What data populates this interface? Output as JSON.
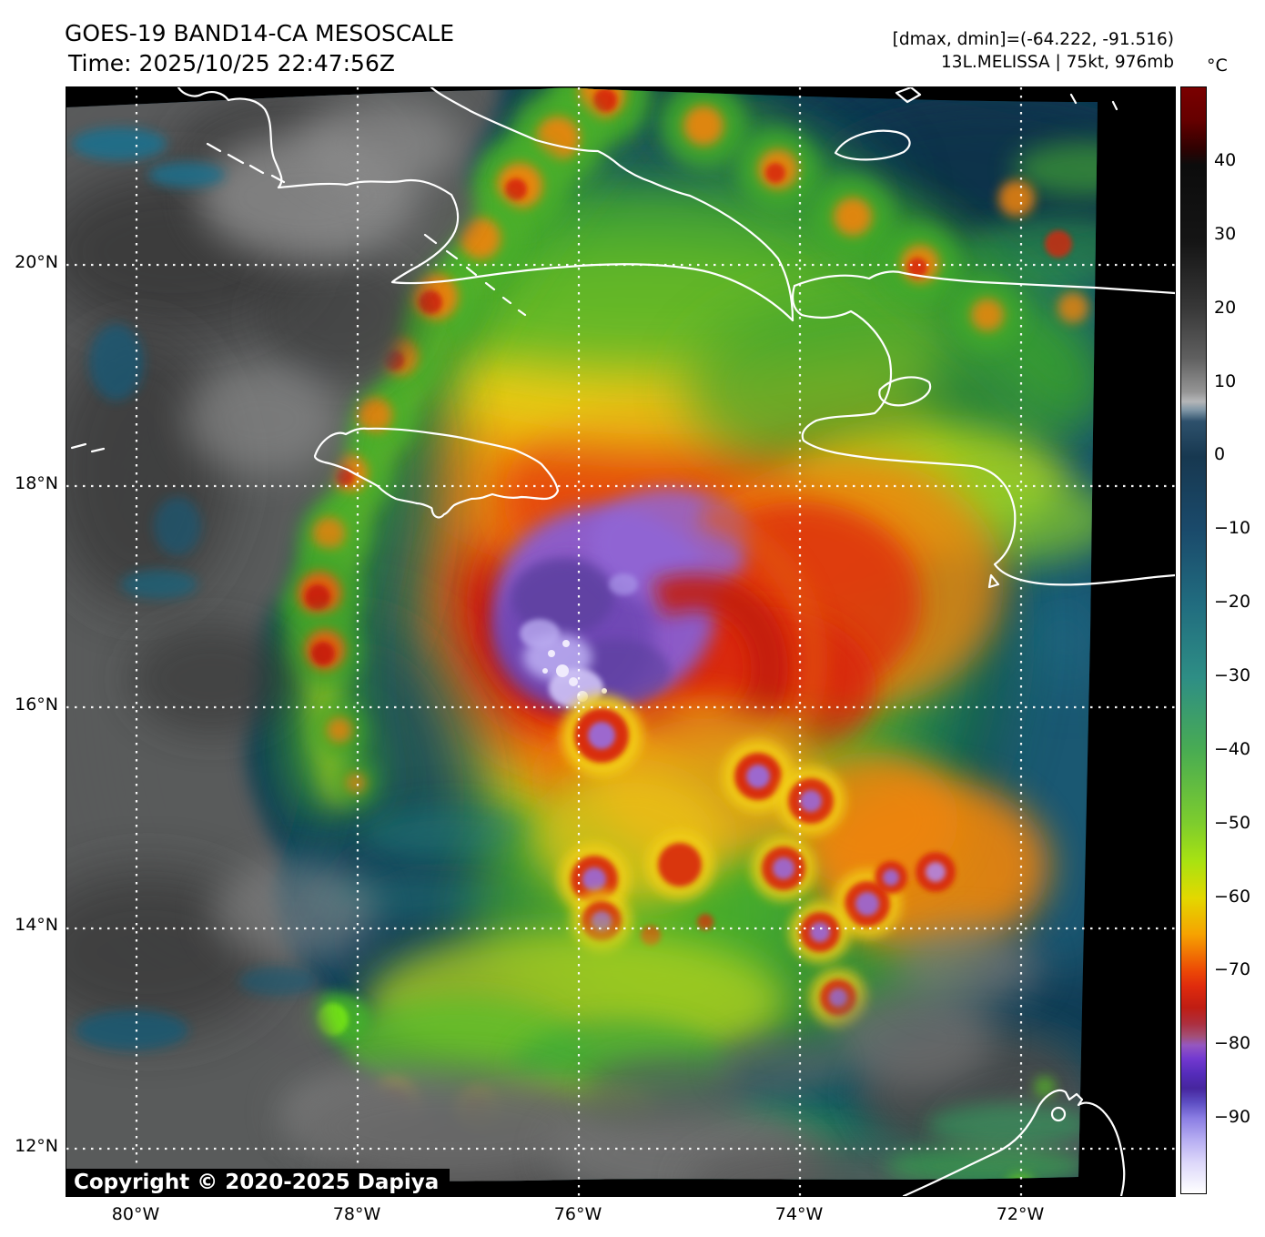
{
  "header": {
    "title": "GOES-19 BAND14-CA MESOSCALE",
    "time": "Time: 2025/10/25 22:47:56Z",
    "range_info": "[dmax, dmin]=(-64.222, -91.516)",
    "storm_info": "13L.MELISSA | 75kt, 976mb"
  },
  "colorbar": {
    "unit": "°C",
    "tick_labels": [
      "40",
      "30",
      "20",
      "10",
      "0",
      "−10",
      "−20",
      "−30",
      "−40",
      "−50",
      "−60",
      "−70",
      "−80",
      "−90"
    ]
  },
  "axes": {
    "lon_labels": [
      "80°W",
      "78°W",
      "76°W",
      "74°W",
      "72°W"
    ],
    "lat_labels": [
      "20°N",
      "18°N",
      "16°N",
      "14°N",
      "12°N"
    ]
  },
  "map": {
    "copyright": "Copyright © 2020-2025 Dapiya"
  }
}
